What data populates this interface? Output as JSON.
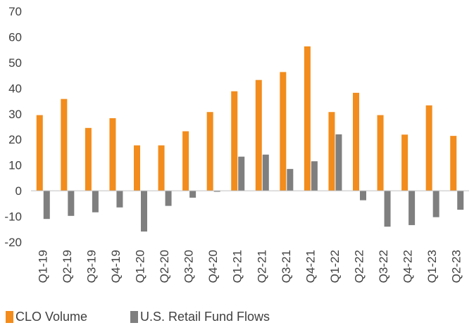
{
  "chart_data": {
    "type": "bar",
    "title": "",
    "xlabel": "",
    "ylabel": "",
    "ylim": [
      -20,
      70
    ],
    "yticks": [
      -20,
      -10,
      0,
      10,
      20,
      30,
      40,
      50,
      60,
      70
    ],
    "grid": false,
    "legend_position": "bottom-left",
    "categories": [
      "Q1-19",
      "Q2-19",
      "Q3-19",
      "Q4-19",
      "Q1-20",
      "Q2-20",
      "Q3-20",
      "Q4-20",
      "Q1-21",
      "Q2-21",
      "Q3-21",
      "Q4-21",
      "Q1-22",
      "Q2-22",
      "Q3-22",
      "Q4-22",
      "Q1-23",
      "Q2-23"
    ],
    "series": [
      {
        "name": "CLO Volume",
        "color": "#F28C1C",
        "values": [
          29.5,
          35.8,
          24.5,
          28.3,
          17.7,
          17.7,
          23.2,
          30.7,
          38.8,
          43.2,
          46.3,
          56.3,
          30.7,
          38.2,
          29.5,
          21.9,
          33.3,
          21.4
        ]
      },
      {
        "name": "U.S. Retail Fund Flows",
        "color": "#7F7F7F",
        "values": [
          -11.0,
          -9.8,
          -8.4,
          -6.5,
          -15.9,
          -5.9,
          -2.7,
          -0.4,
          13.3,
          14.1,
          8.5,
          11.5,
          22.0,
          -3.7,
          -14.0,
          -13.4,
          -10.3,
          -7.4
        ]
      }
    ]
  }
}
